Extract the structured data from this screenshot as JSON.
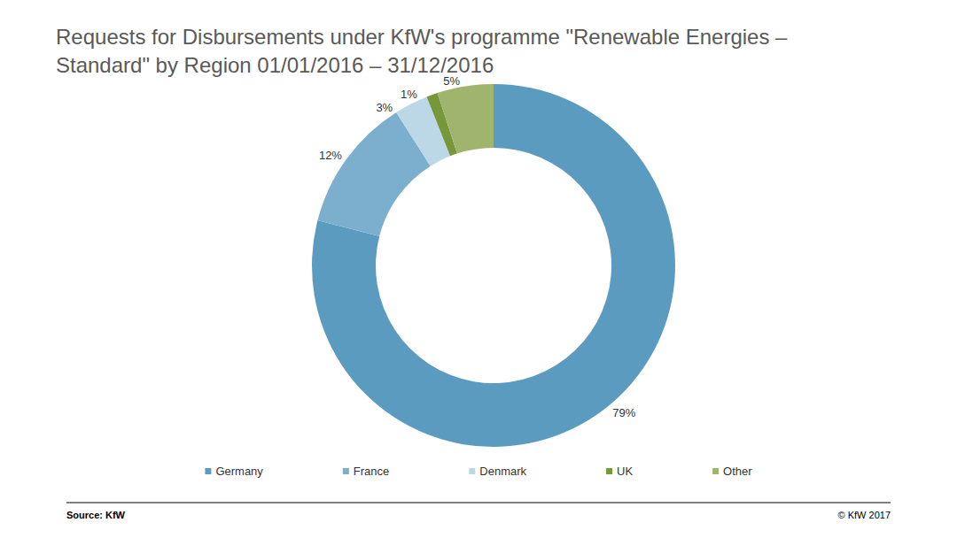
{
  "chart_data": {
    "type": "pie",
    "title": "Requests for Disbursements under KfW's programme \"Renewable Energies – Standard\" by Region 01/01/2016 – 31/12/2016",
    "categories": [
      "Germany",
      "France",
      "Denmark",
      "UK",
      "Other"
    ],
    "values": [
      79,
      12,
      3,
      1,
      5
    ],
    "value_labels": [
      "79%",
      "12%",
      "3%",
      "1%",
      "5%"
    ],
    "colors": [
      "#5b9bc0",
      "#7cafcd",
      "#bcd8e6",
      "#77983a",
      "#9fb56d"
    ],
    "data_labels": true,
    "legend": "bottom",
    "source": "Source: KfW",
    "copyright": "© KfW 2017"
  }
}
